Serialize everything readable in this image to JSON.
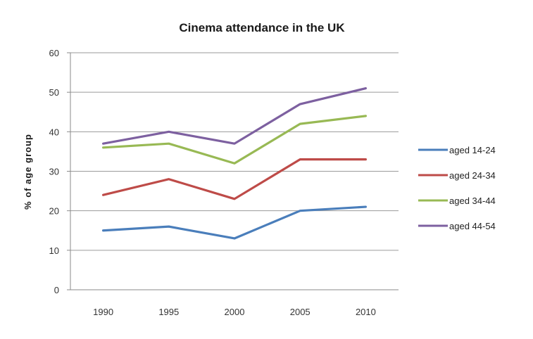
{
  "chart_data": {
    "type": "line",
    "title": "Cinema attendance in the UK",
    "xlabel": "",
    "ylabel": "% of age group",
    "categories": [
      "1990",
      "1995",
      "2000",
      "2005",
      "2010"
    ],
    "ylim": [
      0,
      60
    ],
    "yticks": [
      "0",
      "10",
      "20",
      "30",
      "40",
      "50",
      "60"
    ],
    "grid": true,
    "legend_position": "right",
    "series": [
      {
        "name": "aged 14-24",
        "color": "#4a7ebb",
        "values": [
          15,
          16,
          13,
          20,
          21
        ]
      },
      {
        "name": "aged 24-34",
        "color": "#be4b48",
        "values": [
          24,
          28,
          23,
          33,
          33
        ]
      },
      {
        "name": "aged 34-44",
        "color": "#98b954",
        "values": [
          36,
          37,
          32,
          42,
          44
        ]
      },
      {
        "name": "aged 44-54",
        "color": "#7d60a0",
        "values": [
          37,
          40,
          37,
          47,
          51
        ]
      }
    ]
  }
}
